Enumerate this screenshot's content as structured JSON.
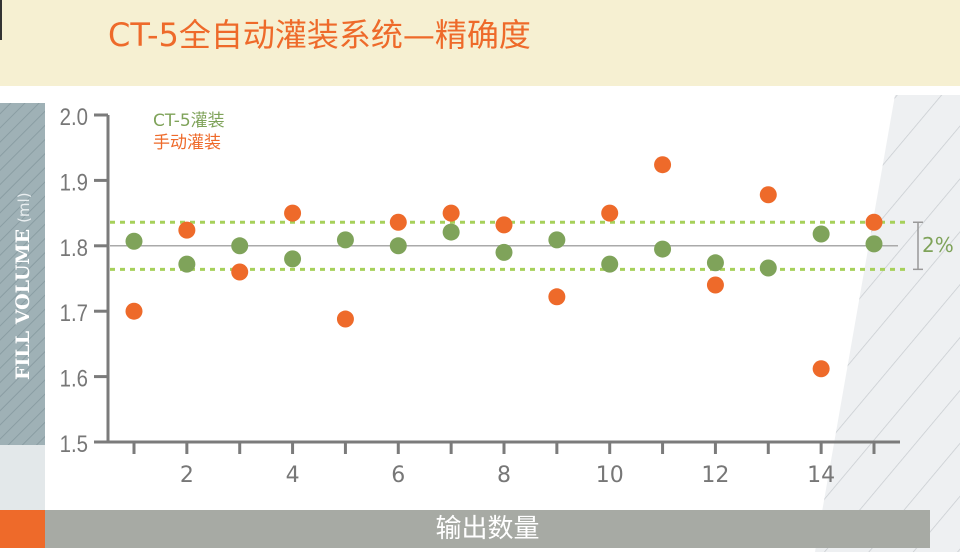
{
  "title": "CT-5全自动灌装系统—精确度",
  "colors": {
    "ct5": "#7fa35a",
    "manual": "#ee6a2a",
    "band": "#a6d05a",
    "axis": "#7b7b7b",
    "header_bg": "#f6f0d2"
  },
  "chart_data": {
    "type": "scatter",
    "title": "",
    "xlabel": "输出数量",
    "ylabel": "FILL VOLUME",
    "ylabel_unit": "(ml)",
    "xlim": [
      1,
      15
    ],
    "ylim": [
      1.5,
      2.0
    ],
    "yticks": [
      "1.5",
      "1.6",
      "1.7",
      "1.8",
      "1.9",
      "2.0"
    ],
    "xticks": [
      "2",
      "4",
      "6",
      "8",
      "10",
      "12",
      "14"
    ],
    "grid": false,
    "legend_position": "top-left",
    "reference_line": 1.8,
    "tolerance_band": [
      1.764,
      1.836
    ],
    "tolerance_label": "2%",
    "x": [
      1,
      2,
      3,
      4,
      5,
      6,
      7,
      8,
      9,
      10,
      11,
      12,
      13,
      14,
      15
    ],
    "series": [
      {
        "name": "CT-5灌装",
        "color": "#7fa35a",
        "values": [
          1.807,
          1.772,
          1.8,
          1.78,
          1.809,
          1.8,
          1.821,
          1.79,
          1.809,
          1.772,
          1.795,
          1.774,
          1.766,
          1.818,
          1.803
        ]
      },
      {
        "name": "手动灌装",
        "color": "#ee6a2a",
        "values": [
          1.7,
          1.824,
          1.76,
          1.85,
          1.688,
          1.836,
          1.85,
          1.832,
          1.722,
          1.85,
          1.924,
          1.74,
          1.878,
          1.612,
          1.836
        ]
      }
    ]
  }
}
